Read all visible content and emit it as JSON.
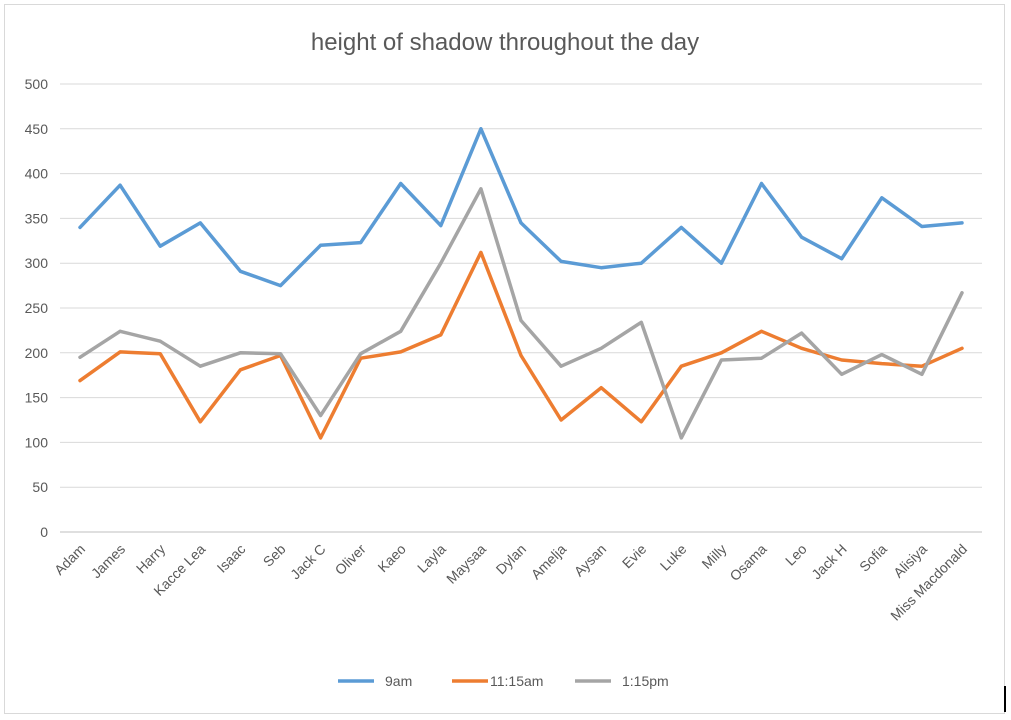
{
  "chart_data": {
    "type": "line",
    "title": "height of shadow throughout the day",
    "xlabel": "",
    "ylabel": "",
    "ylim": [
      0,
      500
    ],
    "yticks": [
      0,
      50,
      100,
      150,
      200,
      250,
      300,
      350,
      400,
      450,
      500
    ],
    "grid": true,
    "legend_position": "bottom",
    "categories": [
      "Adam",
      "James",
      "Harry",
      "Kacce Lea",
      "Isaac",
      "Seb",
      "Jack C",
      "Oliver",
      "Kaeo",
      "Layla",
      "Maysaa",
      "Dylan",
      "Amelja",
      "Aysan",
      "Evie",
      "Luke",
      "Milly",
      "Osama",
      "Leo",
      "Jack H",
      "Sofia",
      "Alisiya",
      "Miss Macdonald"
    ],
    "series": [
      {
        "name": "9am",
        "color": "#5b9bd5",
        "values": [
          340,
          387,
          319,
          345,
          291,
          275,
          320,
          323,
          389,
          342,
          450,
          345,
          302,
          295,
          300,
          340,
          300,
          389,
          329,
          305,
          373,
          341,
          345
        ]
      },
      {
        "name": "11:15am",
        "color": "#ed7d31",
        "values": [
          169,
          201,
          199,
          123,
          181,
          197,
          105,
          194,
          201,
          220,
          312,
          197,
          125,
          161,
          123,
          185,
          200,
          224,
          205,
          192,
          188,
          185,
          205
        ]
      },
      {
        "name": "1:15pm",
        "color": "#a5a5a5",
        "values": [
          195,
          224,
          213,
          185,
          200,
          199,
          130,
          199,
          224,
          300,
          383,
          236,
          185,
          205,
          234,
          105,
          192,
          194,
          222,
          176,
          198,
          176,
          267
        ]
      }
    ]
  }
}
